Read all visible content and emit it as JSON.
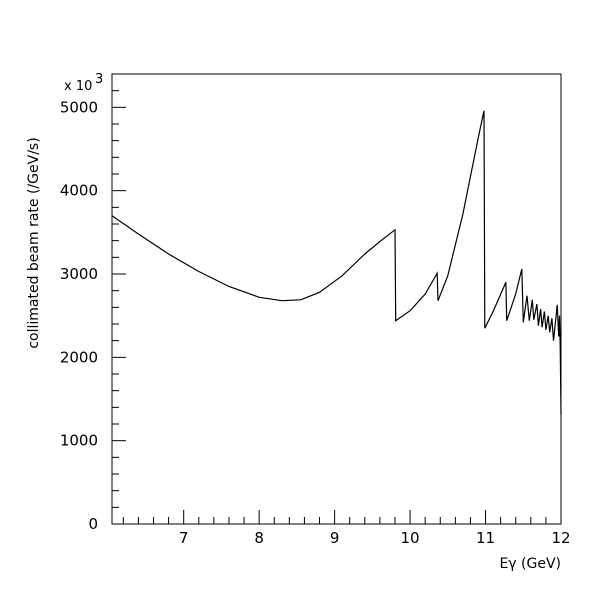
{
  "chart_data": {
    "type": "line",
    "xlabel": "Eγ (GeV)",
    "ylabel": "collimated beam rate (/GeV/s)",
    "y_multiplier_label": "x 10",
    "y_multiplier_exponent": "3",
    "xlim": [
      6.05,
      12.0
    ],
    "ylim": [
      0,
      5400
    ],
    "x_ticks": [
      7,
      8,
      9,
      10,
      11,
      12
    ],
    "x_tick_labels": [
      "7",
      "8",
      "9",
      "10",
      "11",
      "12"
    ],
    "y_ticks": [
      0,
      1000,
      2000,
      3000,
      4000,
      5000
    ],
    "y_tick_labels": [
      "0",
      "1000",
      "2000",
      "3000",
      "4000",
      "5000"
    ],
    "grid": false,
    "series": [
      {
        "x": [
          6.05,
          6.4,
          6.8,
          7.2,
          7.6,
          8.0,
          8.3,
          8.55,
          8.8,
          9.1,
          9.4,
          9.6,
          9.8,
          9.81,
          10.0,
          10.2,
          10.36,
          10.37,
          10.5,
          10.7,
          10.9,
          10.98,
          10.99,
          11.1,
          11.27,
          11.28,
          11.4,
          11.48,
          11.5,
          11.55,
          11.58,
          11.62,
          11.64,
          11.68,
          11.7,
          11.73,
          11.75,
          11.78,
          11.8,
          11.83,
          11.85,
          11.88,
          11.9,
          11.93,
          11.95,
          11.97,
          11.98,
          11.99,
          12.0
        ],
        "y": [
          3700,
          3480,
          3240,
          3030,
          2850,
          2720,
          2680,
          2690,
          2780,
          2980,
          3240,
          3390,
          3530,
          2440,
          2560,
          2760,
          3010,
          2680,
          2980,
          3720,
          4620,
          4960,
          2350,
          2550,
          2900,
          2440,
          2760,
          3060,
          2420,
          2740,
          2440,
          2690,
          2450,
          2640,
          2380,
          2580,
          2360,
          2550,
          2330,
          2500,
          2300,
          2470,
          2200,
          2450,
          2630,
          2250,
          2500,
          2150,
          1310
        ]
      }
    ]
  }
}
